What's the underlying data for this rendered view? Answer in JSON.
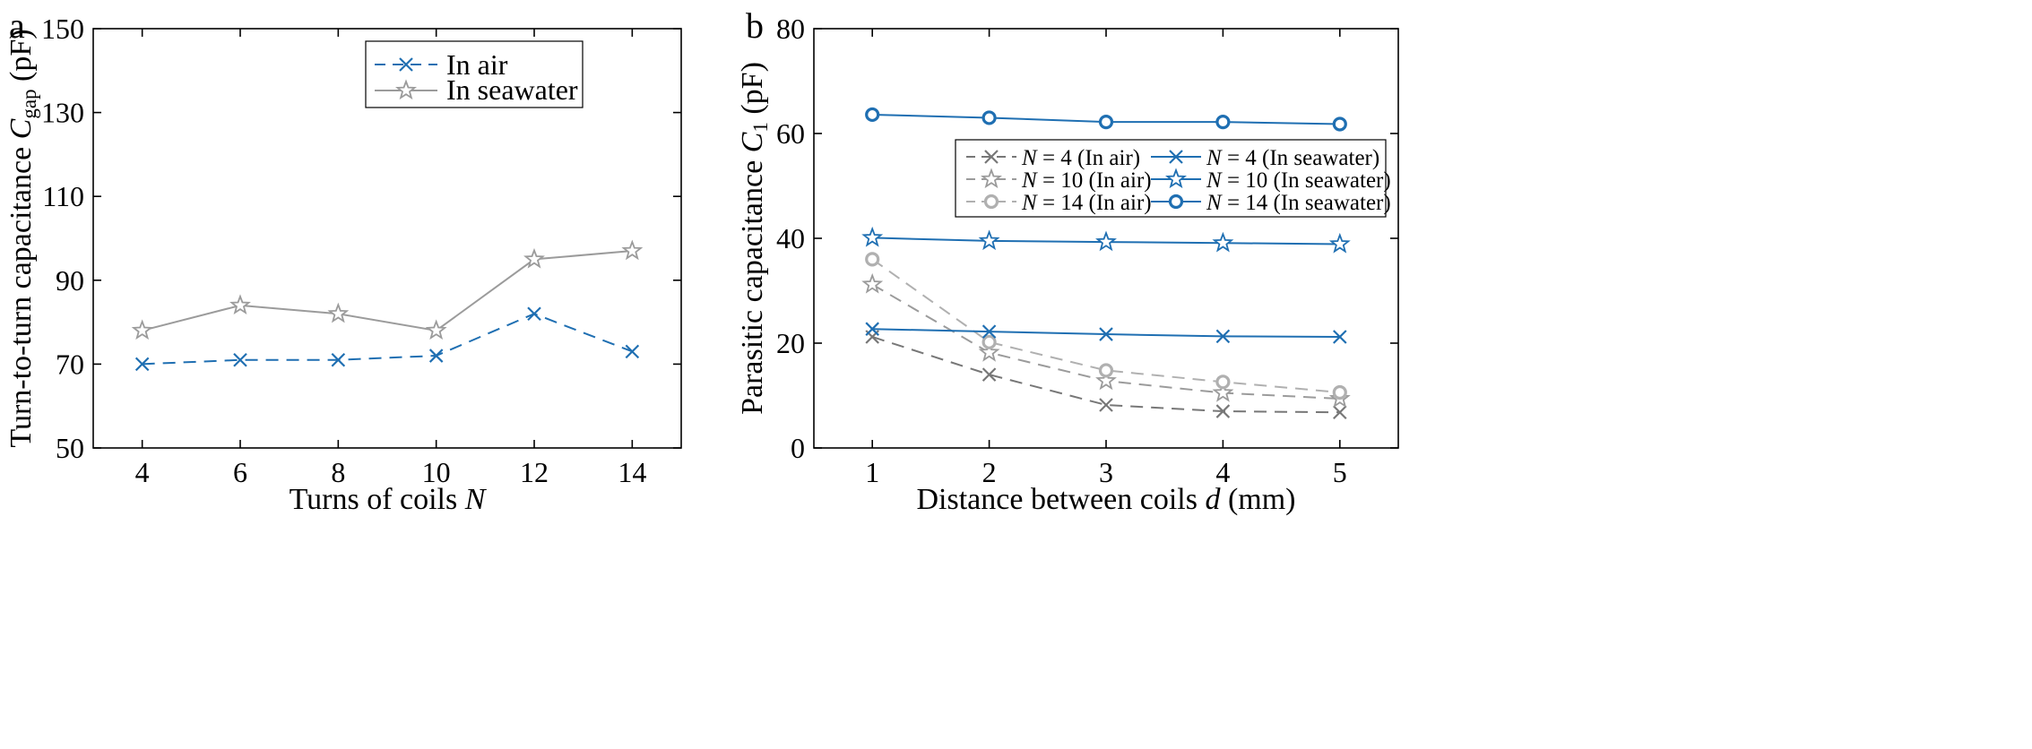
{
  "chart_data": [
    {
      "panel_label": "a",
      "type": "line",
      "xlabel": "Turns of coils ",
      "xlabel_var": "N",
      "ylabel": "Turn-to-turn capacitance ",
      "ylabel_var": "C",
      "ylabel_sub": "gap",
      "ylabel_unit": " (pF)",
      "xlim": [
        3,
        15
      ],
      "ylim": [
        50,
        150
      ],
      "xticks": [
        4,
        6,
        8,
        10,
        12,
        14
      ],
      "yticks": [
        50,
        70,
        90,
        110,
        130,
        150
      ],
      "legend_position": "top-right",
      "series": [
        {
          "name": "In air",
          "x": [
            4,
            6,
            8,
            10,
            12,
            14
          ],
          "values": [
            70,
            71,
            71,
            72,
            82,
            73
          ],
          "color": "#1f6fb2",
          "marker": "x",
          "dash": "dashed"
        },
        {
          "name": "In seawater",
          "x": [
            4,
            6,
            8,
            10,
            12,
            14
          ],
          "values": [
            78,
            84,
            82,
            78,
            95,
            97
          ],
          "color": "#9b9b9b",
          "marker": "star",
          "dash": "solid"
        }
      ]
    },
    {
      "panel_label": "b",
      "type": "line",
      "xlabel": "Distance between coils ",
      "xlabel_var": "d",
      "xlabel_unit": " (mm)",
      "ylabel": "Parasitic capacitance ",
      "ylabel_var": "C",
      "ylabel_sub": "1",
      "ylabel_unit": " (pF)",
      "xlim": [
        0.5,
        5.5
      ],
      "ylim": [
        0,
        80
      ],
      "xticks": [
        1,
        2,
        3,
        4,
        5
      ],
      "yticks": [
        0,
        20,
        40,
        60,
        80
      ],
      "legend_position": "center-right",
      "series": [
        {
          "name_var": "N",
          "name": " = 4 (In air)",
          "x": [
            1,
            2,
            3,
            4,
            5
          ],
          "values": [
            21.2,
            14,
            8.2,
            7,
            6.8
          ],
          "color": "#777777",
          "marker": "x",
          "dash": "dashed"
        },
        {
          "name_var": "N",
          "name": " = 10 (In air)",
          "x": [
            1,
            2,
            3,
            4,
            5
          ],
          "values": [
            31.2,
            18.2,
            12.8,
            10.5,
            9.4
          ],
          "color": "#9b9b9b",
          "marker": "star",
          "dash": "dashed"
        },
        {
          "name_var": "N",
          "name": " = 14 (In air)",
          "x": [
            1,
            2,
            3,
            4,
            5
          ],
          "values": [
            36,
            20.2,
            14.8,
            12.6,
            10.6
          ],
          "color": "#b0b0b0",
          "marker": "circle",
          "dash": "dashed"
        },
        {
          "name_var": "N",
          "name": " = 4 (In seawater)",
          "x": [
            1,
            2,
            3,
            4,
            5
          ],
          "values": [
            22.7,
            22.2,
            21.7,
            21.3,
            21.2
          ],
          "color": "#1f6fb2",
          "marker": "x",
          "dash": "solid"
        },
        {
          "name_var": "N",
          "name": " = 10 (In seawater)",
          "x": [
            1,
            2,
            3,
            4,
            5
          ],
          "values": [
            40.1,
            39.5,
            39.3,
            39.1,
            38.9
          ],
          "color": "#1f6fb2",
          "marker": "star",
          "dash": "solid"
        },
        {
          "name_var": "N",
          "name": " = 14 (In seawater)",
          "x": [
            1,
            2,
            3,
            4,
            5
          ],
          "values": [
            63.6,
            63,
            62.2,
            62.2,
            61.8
          ],
          "color": "#1f6fb2",
          "marker": "circle",
          "dash": "solid"
        }
      ]
    }
  ]
}
